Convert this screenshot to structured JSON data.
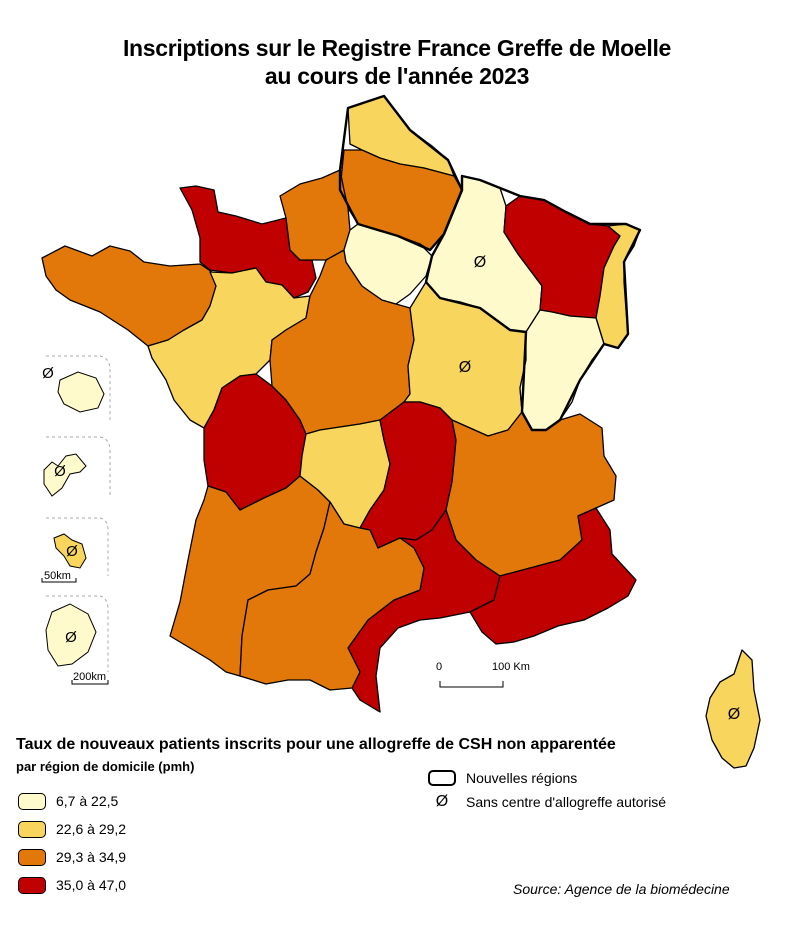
{
  "title": {
    "line1": "Inscriptions sur le Registre France Greffe de Moelle",
    "line2": "au cours de l'année 2023"
  },
  "legend": {
    "title": "Taux de nouveaux patients inscrits pour une allogreffe de CSH non apparentée",
    "subtitle": "par région de domicile (pmh)",
    "classes": [
      {
        "label": "6,7 à 22,5",
        "color": "#fffacc"
      },
      {
        "label": "22,6 à 29,2",
        "color": "#f8d55c"
      },
      {
        "label": "29,3 à 34,9",
        "color": "#e2780a"
      },
      {
        "label": "35,0 à 47,0",
        "color": "#c00000"
      }
    ]
  },
  "key": {
    "regions_label": "Nouvelles régions",
    "no_center_label": "Sans centre d'allogreffe autorisé",
    "no_center_symbol": "Ø"
  },
  "scale": {
    "main_zero": "0",
    "main_label": "100 Km",
    "inset_small": "50km",
    "inset_large": "200km"
  },
  "source": "Source: Agence de la biomédecine"
}
